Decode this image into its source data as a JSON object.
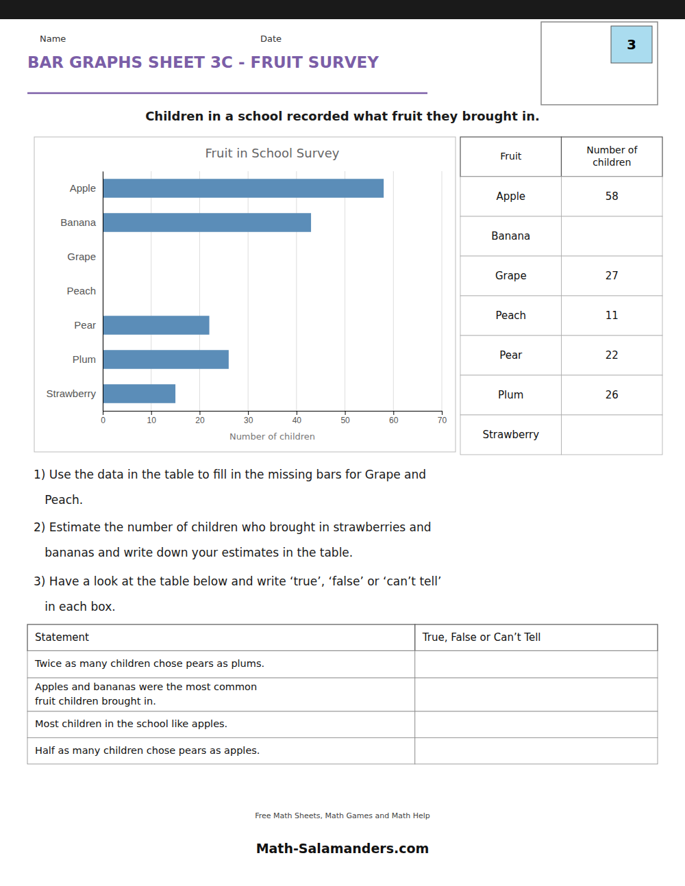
{
  "chart_data": {
    "type": "bar",
    "orientation": "horizontal",
    "title": "Fruit in School Survey",
    "categories": [
      "Apple",
      "Banana",
      "Grape",
      "Peach",
      "Pear",
      "Plum",
      "Strawberry"
    ],
    "values": [
      58,
      43,
      0,
      0,
      22,
      26,
      15
    ],
    "color": "#5b8db8",
    "xlim": [
      0,
      70
    ],
    "xticks": [
      0,
      10,
      20,
      30,
      40,
      50,
      60,
      70
    ],
    "xlabel": "Number of children",
    "grid": true
  },
  "title": "BAR GRAPHS SHEET 3C - FRUIT SURVEY",
  "subtitle": "Children in a school recorded what fruit they brought in.",
  "name_label": "Name",
  "date_label": "Date",
  "badge": "3",
  "table": {
    "headers": [
      "Fruit",
      "Number of\nchildren"
    ],
    "fruits": [
      "Apple",
      "Banana",
      "Grape",
      "Peach",
      "Pear",
      "Plum",
      "Strawberry"
    ],
    "values": [
      58,
      null,
      27,
      11,
      22,
      26,
      null
    ]
  },
  "instructions": [
    [
      "1) Use the data in the table to fill in the missing bars for Grape and",
      "   Peach."
    ],
    [
      "2) Estimate the number of children who brought in strawberries and",
      "   bananas and write down your estimates in the table."
    ],
    [
      "3) Have a look at the table below and write ‘true’, ‘false’ or ‘can’t tell’",
      "   in each box."
    ]
  ],
  "statement_headers": [
    "Statement",
    "True, False or Can’t Tell"
  ],
  "statements": [
    "Twice as many children chose pears as plums.",
    "Apples and bananas were the most common\nfruit children brought in.",
    "Most children in the school like apples.",
    "Half as many children chose pears as apples."
  ],
  "website_line1": "Free Math Sheets, Math Games and Math Help",
  "website_line2": "Math-Salamanders.com"
}
